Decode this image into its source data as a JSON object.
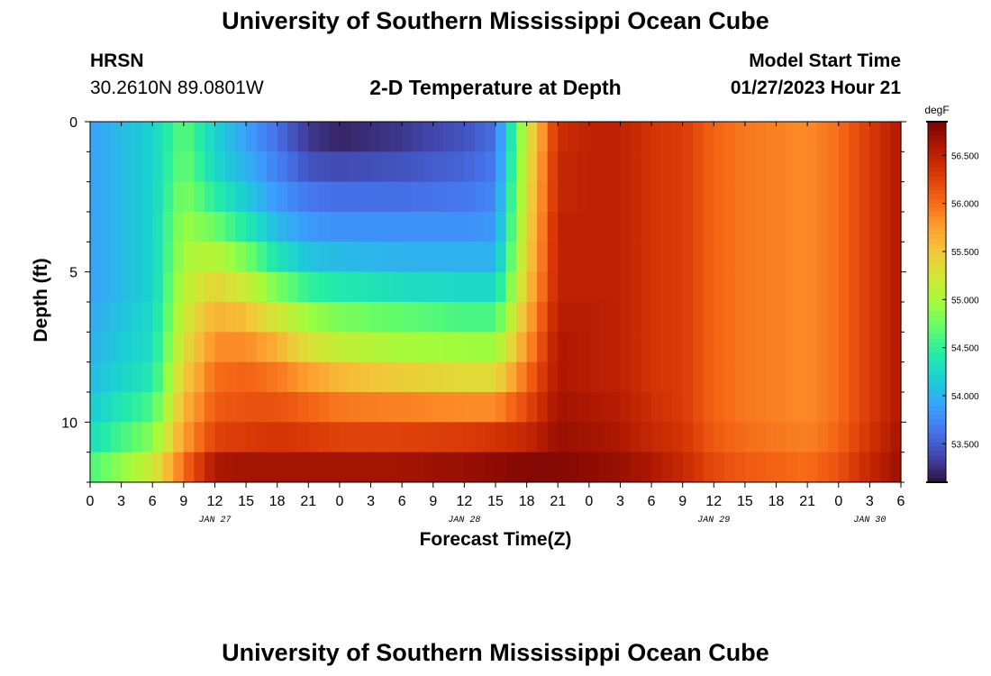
{
  "header": {
    "title": "University of Southern Mississippi Ocean Cube",
    "station": "HRSN",
    "coords": "30.2610N  89.0801W",
    "subtitle": "2-D Temperature at Depth",
    "model_start_label": "Model Start Time",
    "model_start_value": "01/27/2023 Hour 21"
  },
  "footer": {
    "title": "University of Southern Mississippi Ocean Cube"
  },
  "chart_data": {
    "type": "heatmap",
    "title": "2-D Temperature at Depth",
    "xlabel": "Forecast Time(Z)",
    "ylabel": "Depth (ft)",
    "x_tick_labels": [
      "0",
      "3",
      "6",
      "9",
      "12",
      "15",
      "18",
      "21",
      "0",
      "3",
      "6",
      "9",
      "12",
      "15",
      "18",
      "21",
      "0",
      "3",
      "6",
      "9",
      "12",
      "15",
      "18",
      "21",
      "0",
      "3",
      "6"
    ],
    "x_hours_range": [
      0,
      78
    ],
    "date_labels": [
      {
        "label": "JAN 27",
        "hour": 12
      },
      {
        "label": "JAN 28",
        "hour": 36
      },
      {
        "label": "JAN 29",
        "hour": 60
      },
      {
        "label": "JAN 30",
        "hour": 75
      }
    ],
    "y_tick_labels": [
      "0",
      "5",
      "10"
    ],
    "y_ticks_values": [
      0,
      5,
      10
    ],
    "ylim": [
      0,
      12
    ],
    "colorbar": {
      "unit": "degF",
      "min": 53.1,
      "max": 56.85,
      "tick_labels": [
        "56.500",
        "56.000",
        "55.500",
        "55.000",
        "54.500",
        "54.000",
        "53.500"
      ],
      "ticks": [
        56.5,
        56.0,
        55.5,
        55.0,
        54.5,
        54.0,
        53.5
      ]
    },
    "depth_layers_ft": [
      0.5,
      1.5,
      2.5,
      3.5,
      4.5,
      5.5,
      6.5,
      7.5,
      8.5,
      9.5,
      10.5,
      11.5
    ],
    "profile_times_h": [
      0,
      6,
      9,
      12,
      15,
      18,
      21,
      24,
      30,
      36,
      39,
      42,
      45,
      48,
      51,
      54,
      57,
      60,
      63,
      66,
      69,
      72,
      75,
      78
    ],
    "temperature_degF": [
      [
        53.9,
        54.2,
        54.7,
        54.2,
        53.9,
        53.6,
        53.3,
        53.2,
        53.3,
        53.45,
        53.6,
        55.2,
        56.4,
        56.5,
        56.5,
        56.35,
        56.3,
        56.05,
        55.95,
        55.9,
        55.85,
        56.0,
        56.3,
        56.6
      ],
      [
        53.9,
        54.2,
        54.75,
        54.25,
        54.0,
        53.7,
        53.45,
        53.4,
        53.45,
        53.55,
        53.65,
        55.25,
        56.45,
        56.5,
        56.5,
        56.35,
        56.3,
        56.05,
        55.95,
        55.9,
        55.85,
        56.0,
        56.3,
        56.6
      ],
      [
        53.9,
        54.2,
        54.85,
        54.45,
        54.15,
        53.85,
        53.65,
        53.6,
        53.6,
        53.65,
        53.75,
        55.3,
        56.45,
        56.5,
        56.5,
        56.35,
        56.3,
        56.05,
        55.95,
        55.9,
        55.85,
        56.0,
        56.3,
        56.6
      ],
      [
        53.9,
        54.2,
        54.95,
        54.75,
        54.4,
        54.05,
        53.85,
        53.8,
        53.8,
        53.8,
        53.85,
        55.35,
        56.5,
        56.5,
        56.5,
        56.35,
        56.3,
        56.05,
        55.95,
        55.9,
        55.85,
        56.0,
        56.3,
        56.6
      ],
      [
        53.9,
        54.2,
        55.0,
        55.1,
        54.8,
        54.35,
        54.1,
        54.05,
        54.0,
        54.0,
        54.0,
        55.4,
        56.5,
        56.5,
        56.5,
        56.35,
        56.3,
        56.05,
        55.95,
        55.9,
        55.85,
        56.0,
        56.3,
        56.6
      ],
      [
        53.9,
        54.2,
        55.1,
        55.4,
        55.2,
        54.8,
        54.5,
        54.4,
        54.3,
        54.25,
        54.25,
        55.5,
        56.5,
        56.5,
        56.5,
        56.35,
        56.3,
        56.05,
        55.95,
        55.9,
        55.85,
        56.0,
        56.3,
        56.6
      ],
      [
        53.95,
        54.25,
        55.2,
        55.65,
        55.55,
        55.25,
        54.95,
        54.8,
        54.7,
        54.6,
        54.6,
        55.65,
        56.55,
        56.55,
        56.5,
        56.35,
        56.3,
        56.05,
        55.95,
        55.9,
        55.85,
        56.0,
        56.3,
        56.6
      ],
      [
        54.0,
        54.3,
        55.3,
        55.85,
        55.85,
        55.65,
        55.3,
        55.15,
        55.0,
        54.95,
        54.95,
        55.8,
        56.6,
        56.55,
        56.5,
        56.35,
        56.3,
        56.05,
        55.95,
        55.9,
        55.85,
        56.0,
        56.3,
        56.6
      ],
      [
        54.05,
        54.4,
        55.45,
        56.0,
        56.05,
        55.95,
        55.75,
        55.6,
        55.45,
        55.35,
        55.35,
        56.0,
        56.6,
        56.55,
        56.5,
        56.35,
        56.3,
        56.05,
        55.95,
        55.9,
        55.85,
        56.0,
        56.3,
        56.6
      ],
      [
        54.15,
        54.6,
        55.6,
        56.1,
        56.15,
        56.15,
        56.05,
        55.95,
        55.9,
        55.85,
        55.85,
        56.2,
        56.65,
        56.6,
        56.55,
        56.4,
        56.3,
        56.05,
        55.95,
        55.9,
        55.85,
        56.0,
        56.3,
        56.6
      ],
      [
        54.3,
        54.85,
        55.75,
        56.25,
        56.3,
        56.35,
        56.3,
        56.25,
        56.25,
        56.3,
        56.35,
        56.45,
        56.7,
        56.65,
        56.6,
        56.45,
        56.35,
        56.1,
        56.0,
        55.95,
        55.9,
        56.05,
        56.35,
        56.65
      ],
      [
        54.6,
        55.2,
        56.0,
        56.6,
        56.65,
        56.65,
        56.65,
        56.65,
        56.65,
        56.7,
        56.75,
        56.8,
        56.8,
        56.75,
        56.7,
        56.6,
        56.45,
        56.2,
        56.1,
        56.05,
        56.0,
        56.15,
        56.45,
        56.7
      ]
    ]
  },
  "colors": {
    "colormap": [
      "#30123b",
      "#4145ab",
      "#4675ed",
      "#39a2fc",
      "#1bcfd4",
      "#24eca6",
      "#61fc6c",
      "#a4fc3b",
      "#d1e834",
      "#f3c63a",
      "#fe9b2d",
      "#f36315",
      "#d93806",
      "#b11901",
      "#7a0403"
    ]
  }
}
